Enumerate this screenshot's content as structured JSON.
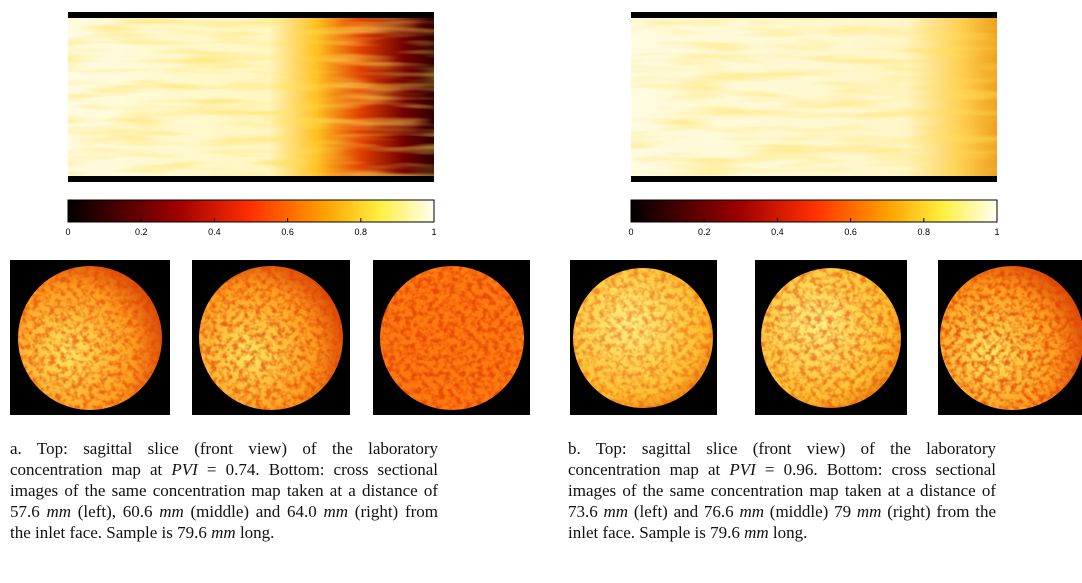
{
  "panels": [
    {
      "colorbar": {
        "lim": [
          0,
          1
        ],
        "ticks": [
          0,
          0.2,
          0.4,
          0.6,
          0.8,
          1
        ]
      },
      "caption": [
        "a. Top: sagittal slice (front view) of the laboratory concentration map at ",
        "PVI",
        " = 0.74. Bottom: cross sectional images of the same concentration map taken at a distance of 57.6 ",
        "mm",
        " (left), 60.6 ",
        "mm",
        " (middle) and 64.0 ",
        "mm",
        " (right) from the inlet face. Sample is 79.6 ",
        "mm",
        " long."
      ]
    },
    {
      "colorbar": {
        "lim": [
          0,
          1
        ],
        "ticks": [
          0,
          0.2,
          0.4,
          0.6,
          0.8,
          1
        ]
      },
      "caption": [
        "b. Top: sagittal slice (front view) of the laboratory concentration map at ",
        "PVI",
        " = 0.96. Bottom: cross sectional images of the same concentration map taken at a distance of 73.6 ",
        "mm",
        " (left) and 76.6 ",
        "mm",
        " (middle) 79 ",
        "mm",
        " (right) from the inlet face. Sample is 79.6 ",
        "mm",
        " long."
      ]
    }
  ]
}
